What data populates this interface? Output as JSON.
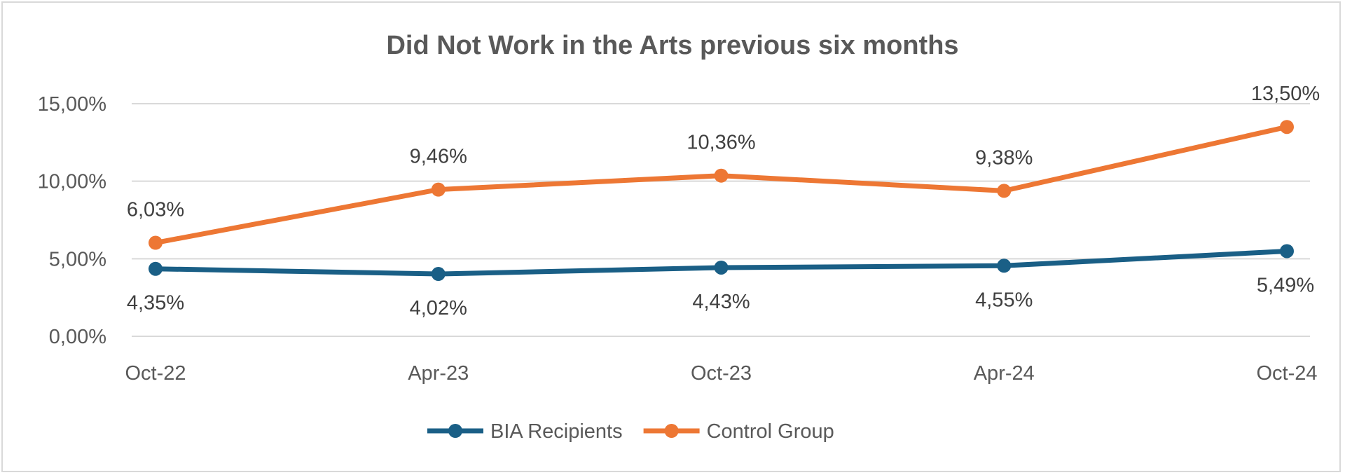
{
  "chart_data": {
    "type": "line",
    "title": "Did Not Work in the Arts previous six months",
    "categories": [
      "Oct-22",
      "Apr-23",
      "Oct-23",
      "Apr-24",
      "Oct-24"
    ],
    "series": [
      {
        "name": "BIA Recipients",
        "color": "#1a5f86",
        "values": [
          4.35,
          4.02,
          4.43,
          4.55,
          5.49
        ],
        "labels": [
          "4,35%",
          "4,02%",
          "4,43%",
          "4,55%",
          "5,49%"
        ],
        "label_position": "below"
      },
      {
        "name": "Control Group",
        "color": "#ed7734",
        "values": [
          6.03,
          9.46,
          10.36,
          9.38,
          13.5
        ],
        "labels": [
          "6,03%",
          "9,46%",
          "10,36%",
          "9,38%",
          "13,50%"
        ],
        "label_position": "above"
      }
    ],
    "yticks": [
      0,
      5,
      10,
      15
    ],
    "ytick_labels": [
      "0,00%",
      "5,00%",
      "10,00%",
      "15,00%"
    ],
    "ylim": [
      0,
      15
    ],
    "xlabel": "",
    "ylabel": "",
    "grid": true,
    "legend": "bottom"
  }
}
